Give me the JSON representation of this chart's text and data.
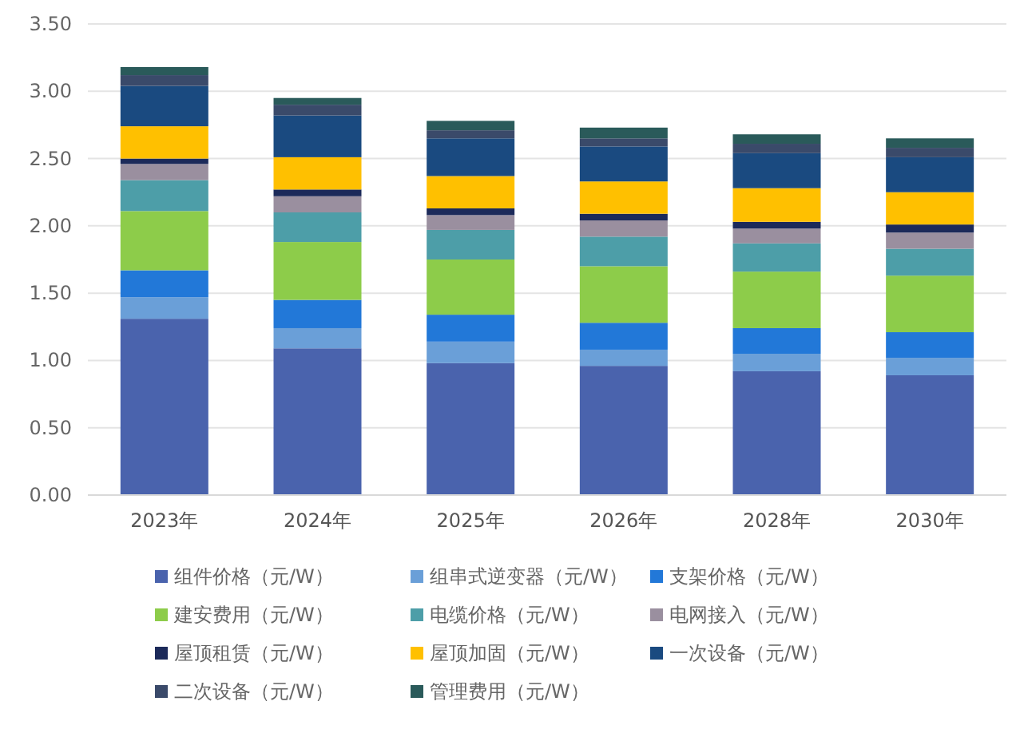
{
  "chart_data": {
    "type": "bar",
    "stacked": true,
    "categories": [
      "2023年",
      "2024年",
      "2025年",
      "2026年",
      "2028年",
      "2030年"
    ],
    "ylim": [
      0,
      3.5
    ],
    "yticks": [
      {
        "value": 0,
        "label": "0.00"
      },
      {
        "value": 0.5,
        "label": "0.50"
      },
      {
        "value": 1,
        "label": "1.00"
      },
      {
        "value": 1.5,
        "label": "1.50"
      },
      {
        "value": 2,
        "label": "2.00"
      },
      {
        "value": 2.5,
        "label": "2.50"
      },
      {
        "value": 3,
        "label": "3.00"
      },
      {
        "value": 3.5,
        "label": "3.50"
      }
    ],
    "grid": "y",
    "legend": "bottom",
    "series": [
      {
        "name": "组件价格（元/W）",
        "color": "#4a63ad",
        "values": [
          1.31,
          1.09,
          0.98,
          0.96,
          0.92,
          0.89
        ]
      },
      {
        "name": "组串式逆变器（元/W）",
        "color": "#6a9fd8",
        "values": [
          0.16,
          0.15,
          0.16,
          0.12,
          0.13,
          0.13
        ]
      },
      {
        "name": "支架价格（元/W）",
        "color": "#2278d8",
        "values": [
          0.2,
          0.21,
          0.2,
          0.2,
          0.19,
          0.19
        ]
      },
      {
        "name": "建安费用（元/W）",
        "color": "#8dcc4a",
        "values": [
          0.44,
          0.43,
          0.41,
          0.42,
          0.42,
          0.42
        ]
      },
      {
        "name": "电缆价格（元/W）",
        "color": "#4d9ea8",
        "values": [
          0.23,
          0.22,
          0.22,
          0.22,
          0.21,
          0.2
        ]
      },
      {
        "name": "电网接入（元/W）",
        "color": "#9a8f9f",
        "values": [
          0.12,
          0.12,
          0.11,
          0.12,
          0.11,
          0.12
        ]
      },
      {
        "name": "屋顶租赁（元/W）",
        "color": "#1c2a5a",
        "values": [
          0.04,
          0.05,
          0.05,
          0.05,
          0.05,
          0.06
        ]
      },
      {
        "name": "屋顶加固（元/W）",
        "color": "#ffc000",
        "values": [
          0.24,
          0.24,
          0.24,
          0.24,
          0.25,
          0.24
        ]
      },
      {
        "name": "一次设备（元/W）",
        "color": "#1a4a80",
        "values": [
          0.3,
          0.31,
          0.28,
          0.26,
          0.26,
          0.26
        ]
      },
      {
        "name": "二次设备（元/W）",
        "color": "#3a4a6a",
        "values": [
          0.08,
          0.08,
          0.06,
          0.06,
          0.07,
          0.07
        ]
      },
      {
        "name": "管理费用（元/W）",
        "color": "#2a5a5a",
        "values": [
          0.06,
          0.05,
          0.07,
          0.08,
          0.07,
          0.07
        ]
      }
    ]
  }
}
